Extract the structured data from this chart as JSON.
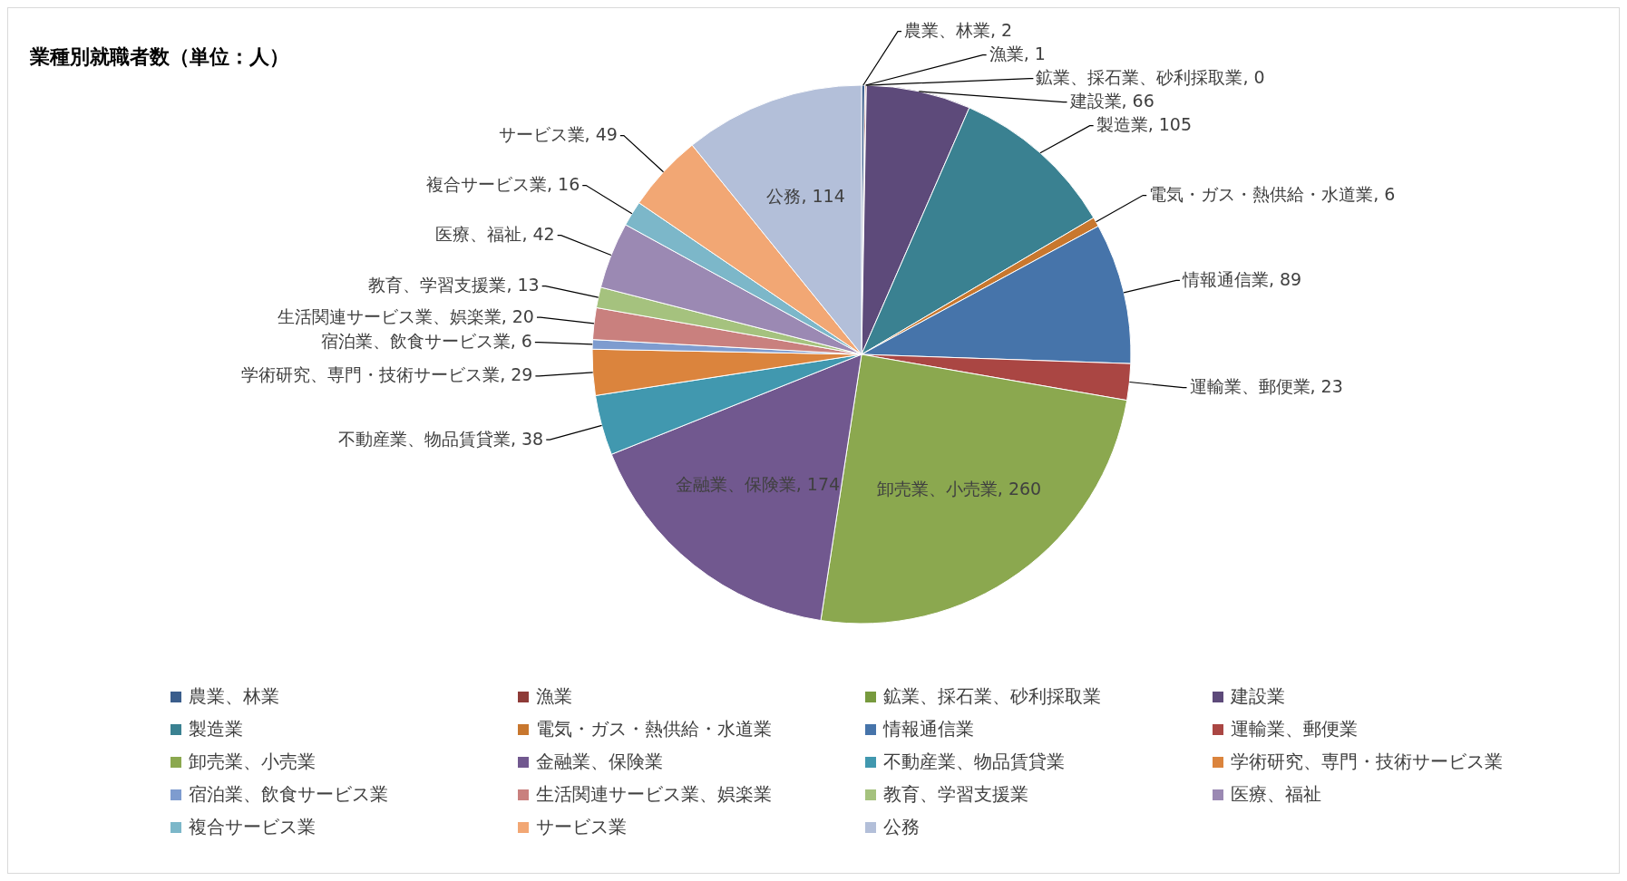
{
  "chart_data": {
    "type": "pie",
    "title": "業種別就職者数（単位：人）",
    "categories": [
      "農業、林業",
      "漁業",
      "鉱業、採石業、砂利採取業",
      "建設業",
      "製造業",
      "電気・ガス・熱供給・水道業",
      "情報通信業",
      "運輸業、郵便業",
      "卸売業、小売業",
      "金融業、保険業",
      "不動産業、物品賃貸業",
      "学術研究、専門・技術サービス業",
      "宿泊業、飲食サービス業",
      "生活関連サービス業、娯楽業",
      "教育、学習支援業",
      "医療、福祉",
      "複合サービス業",
      "サービス業",
      "公務"
    ],
    "values": [
      2,
      1,
      0,
      66,
      105,
      6,
      89,
      23,
      260,
      174,
      38,
      29,
      6,
      20,
      13,
      42,
      16,
      49,
      114
    ],
    "colors": [
      "#3b5e8c",
      "#8e3b38",
      "#779a3e",
      "#5d4a7a",
      "#3a8191",
      "#c8772e",
      "#4674aa",
      "#aa4643",
      "#8ba84f",
      "#71588f",
      "#4198af",
      "#db843d",
      "#7e9ccf",
      "#c9807e",
      "#a5c27e",
      "#9b89b3",
      "#7cb7c9",
      "#f2a774",
      "#b3bfd9"
    ],
    "value_labels": [
      "農業、林業, 2",
      "漁業, 1",
      "鉱業、採石業、砂利採取業, 0",
      "建設業, 66",
      "製造業, 105",
      "電気・ガス・熱供給・水道業, 6",
      "情報通信業, 89",
      "運輸業、郵便業, 23",
      "卸売業、小売業, 260",
      "金融業、保険業, 174",
      "不動産業、物品賃貸業, 38",
      "学術研究、専門・技術サービス業, 29",
      "宿泊業、飲食サービス業, 6",
      "生活関連サービス業、娯楽業, 20",
      "教育、学習支援業, 13",
      "医療、福祉, 42",
      "複合サービス業, 16",
      "サービス業, 49",
      "公務, 114"
    ],
    "legend": "bottom"
  }
}
